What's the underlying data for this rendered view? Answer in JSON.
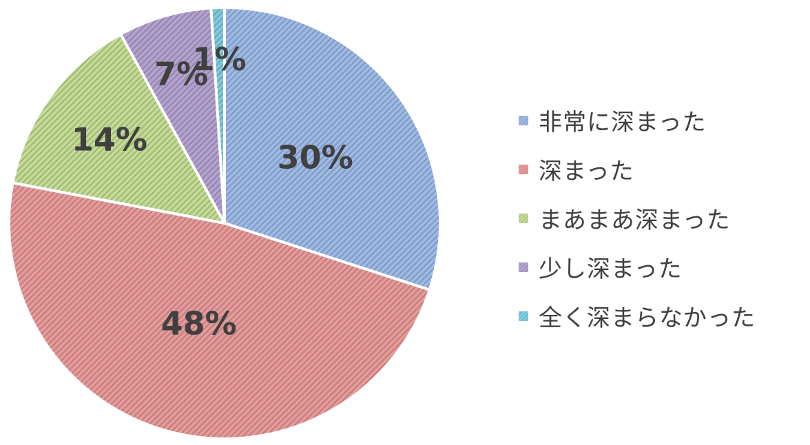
{
  "chart_data": {
    "type": "pie",
    "title": "",
    "start_angle_deg": 0,
    "direction": "clockwise",
    "legend_position": "right",
    "slices": [
      {
        "name": "非常に深まった",
        "value": 30,
        "label": "30%",
        "color": "#9DB9E6"
      },
      {
        "name": "深まった",
        "value": 48,
        "label": "48%",
        "color": "#E79A99"
      },
      {
        "name": "まあまあ深まった",
        "value": 14,
        "label": "14%",
        "color": "#C4DB94"
      },
      {
        "name": "少し深まった",
        "value": 7,
        "label": "7%",
        "color": "#B3A2CF"
      },
      {
        "name": "全く深まらなかった",
        "value": 1,
        "label": "1%",
        "color": "#7FCBE0"
      }
    ]
  }
}
